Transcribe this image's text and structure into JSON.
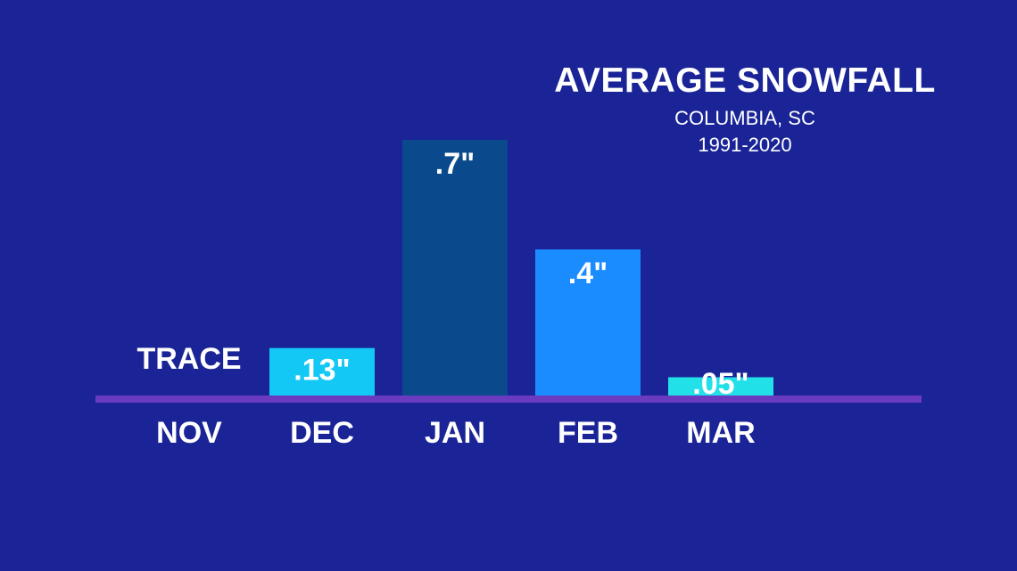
{
  "chart_data": {
    "type": "bar",
    "title": "AVERAGE SNOWFALL",
    "subtitle": "COLUMBIA, SC",
    "period": "1991-2020",
    "categories": [
      "NOV",
      "DEC",
      "JAN",
      "FEB",
      "MAR"
    ],
    "values": [
      0,
      0.13,
      0.7,
      0.4,
      0.05
    ],
    "value_labels": [
      "TRACE",
      ".13\"",
      ".7\"",
      ".4\"",
      ".05\""
    ],
    "bar_colors": [
      "#1a2496",
      "#14c8f5",
      "#0a4a8c",
      "#1a8cff",
      "#22e0e8"
    ],
    "ylim": [
      0,
      0.7
    ],
    "grid": false,
    "colors": {
      "background": "#1a2496",
      "baseline": "#6a3bbf",
      "text": "#ffffff"
    }
  }
}
